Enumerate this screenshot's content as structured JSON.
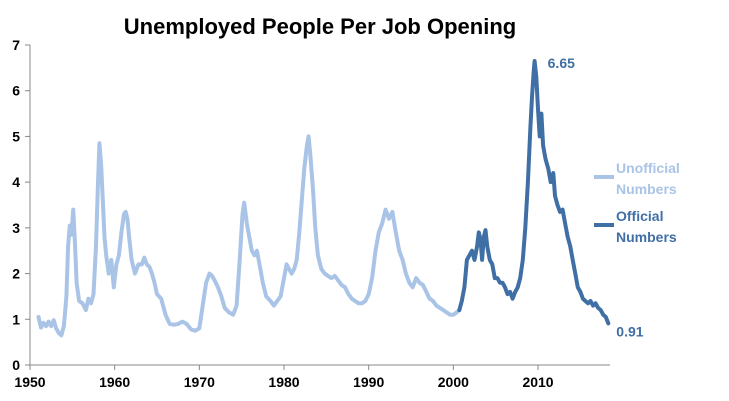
{
  "chart_data": {
    "type": "line",
    "title": "Unemployed People Per Job Opening",
    "xlim": [
      1950,
      2018.5
    ],
    "ylim": [
      0,
      7
    ],
    "x_ticks": [
      "1950",
      "1960",
      "1970",
      "1980",
      "1990",
      "2000",
      "2010"
    ],
    "y_ticks": [
      "0",
      "1",
      "2",
      "3",
      "4",
      "5",
      "6",
      "7"
    ],
    "grid": false,
    "legend_position": "right",
    "series": [
      {
        "name": "Unofficial Numbers",
        "color": "#A9C4E6",
        "points": [
          [
            1951.0,
            1.05
          ],
          [
            1951.3,
            0.82
          ],
          [
            1951.6,
            0.92
          ],
          [
            1951.9,
            0.85
          ],
          [
            1952.2,
            0.95
          ],
          [
            1952.5,
            0.85
          ],
          [
            1952.8,
            0.98
          ],
          [
            1953.1,
            0.8
          ],
          [
            1953.4,
            0.7
          ],
          [
            1953.7,
            0.65
          ],
          [
            1954.0,
            0.85
          ],
          [
            1954.3,
            1.5
          ],
          [
            1954.5,
            2.6
          ],
          [
            1954.7,
            3.05
          ],
          [
            1954.9,
            2.85
          ],
          [
            1955.1,
            3.4
          ],
          [
            1955.3,
            2.7
          ],
          [
            1955.5,
            1.8
          ],
          [
            1955.8,
            1.4
          ],
          [
            1956.2,
            1.35
          ],
          [
            1956.6,
            1.2
          ],
          [
            1956.9,
            1.45
          ],
          [
            1957.2,
            1.35
          ],
          [
            1957.5,
            1.55
          ],
          [
            1957.8,
            2.6
          ],
          [
            1958.0,
            3.8
          ],
          [
            1958.2,
            4.85
          ],
          [
            1958.4,
            4.4
          ],
          [
            1958.6,
            3.6
          ],
          [
            1958.8,
            2.8
          ],
          [
            1959.0,
            2.4
          ],
          [
            1959.3,
            2.0
          ],
          [
            1959.6,
            2.3
          ],
          [
            1959.9,
            1.7
          ],
          [
            1960.2,
            2.2
          ],
          [
            1960.5,
            2.4
          ],
          [
            1960.8,
            2.9
          ],
          [
            1961.1,
            3.3
          ],
          [
            1961.3,
            3.35
          ],
          [
            1961.5,
            3.2
          ],
          [
            1961.7,
            2.8
          ],
          [
            1962.0,
            2.3
          ],
          [
            1962.4,
            2.0
          ],
          [
            1962.8,
            2.2
          ],
          [
            1963.2,
            2.2
          ],
          [
            1963.5,
            2.35
          ],
          [
            1963.8,
            2.2
          ],
          [
            1964.1,
            2.15
          ],
          [
            1964.4,
            2.0
          ],
          [
            1964.7,
            1.8
          ],
          [
            1965.0,
            1.55
          ],
          [
            1965.5,
            1.45
          ],
          [
            1966.0,
            1.1
          ],
          [
            1966.5,
            0.9
          ],
          [
            1967.0,
            0.88
          ],
          [
            1967.5,
            0.9
          ],
          [
            1968.0,
            0.95
          ],
          [
            1968.5,
            0.9
          ],
          [
            1969.0,
            0.78
          ],
          [
            1969.5,
            0.75
          ],
          [
            1970.0,
            0.8
          ],
          [
            1970.4,
            1.3
          ],
          [
            1970.8,
            1.8
          ],
          [
            1971.2,
            2.0
          ],
          [
            1971.5,
            1.95
          ],
          [
            1971.8,
            1.85
          ],
          [
            1972.2,
            1.7
          ],
          [
            1972.6,
            1.5
          ],
          [
            1973.0,
            1.25
          ],
          [
            1973.5,
            1.15
          ],
          [
            1974.0,
            1.1
          ],
          [
            1974.4,
            1.3
          ],
          [
            1974.8,
            2.4
          ],
          [
            1975.1,
            3.3
          ],
          [
            1975.3,
            3.55
          ],
          [
            1975.6,
            3.1
          ],
          [
            1975.9,
            2.8
          ],
          [
            1976.2,
            2.5
          ],
          [
            1976.5,
            2.4
          ],
          [
            1976.8,
            2.5
          ],
          [
            1977.1,
            2.2
          ],
          [
            1977.5,
            1.8
          ],
          [
            1977.9,
            1.5
          ],
          [
            1978.4,
            1.4
          ],
          [
            1978.8,
            1.3
          ],
          [
            1979.2,
            1.4
          ],
          [
            1979.6,
            1.5
          ],
          [
            1980.0,
            1.9
          ],
          [
            1980.3,
            2.2
          ],
          [
            1980.6,
            2.1
          ],
          [
            1980.9,
            2.0
          ],
          [
            1981.2,
            2.1
          ],
          [
            1981.5,
            2.3
          ],
          [
            1981.8,
            2.9
          ],
          [
            1982.1,
            3.6
          ],
          [
            1982.4,
            4.3
          ],
          [
            1982.7,
            4.8
          ],
          [
            1982.9,
            5.0
          ],
          [
            1983.1,
            4.6
          ],
          [
            1983.4,
            3.9
          ],
          [
            1983.7,
            3.0
          ],
          [
            1984.0,
            2.4
          ],
          [
            1984.4,
            2.1
          ],
          [
            1984.8,
            2.0
          ],
          [
            1985.2,
            1.95
          ],
          [
            1985.6,
            1.9
          ],
          [
            1986.0,
            1.95
          ],
          [
            1986.4,
            1.85
          ],
          [
            1986.8,
            1.75
          ],
          [
            1987.2,
            1.7
          ],
          [
            1987.6,
            1.55
          ],
          [
            1988.0,
            1.45
          ],
          [
            1988.4,
            1.4
          ],
          [
            1988.8,
            1.35
          ],
          [
            1989.2,
            1.35
          ],
          [
            1989.6,
            1.4
          ],
          [
            1990.0,
            1.55
          ],
          [
            1990.4,
            1.9
          ],
          [
            1990.8,
            2.5
          ],
          [
            1991.2,
            2.9
          ],
          [
            1991.6,
            3.1
          ],
          [
            1992.0,
            3.4
          ],
          [
            1992.4,
            3.2
          ],
          [
            1992.8,
            3.35
          ],
          [
            1993.2,
            2.9
          ],
          [
            1993.6,
            2.5
          ],
          [
            1994.0,
            2.3
          ],
          [
            1994.4,
            2.0
          ],
          [
            1994.8,
            1.8
          ],
          [
            1995.2,
            1.7
          ],
          [
            1995.6,
            1.9
          ],
          [
            1996.0,
            1.8
          ],
          [
            1996.4,
            1.75
          ],
          [
            1996.8,
            1.6
          ],
          [
            1997.2,
            1.45
          ],
          [
            1997.6,
            1.4
          ],
          [
            1998.0,
            1.3
          ],
          [
            1998.4,
            1.25
          ],
          [
            1998.8,
            1.2
          ],
          [
            1999.2,
            1.15
          ],
          [
            1999.6,
            1.1
          ],
          [
            2000.0,
            1.1
          ],
          [
            2000.4,
            1.15
          ],
          [
            2000.7,
            1.2
          ]
        ]
      },
      {
        "name": "Official Numbers",
        "color": "#3F6FA5",
        "points": [
          [
            2000.7,
            1.2
          ],
          [
            2001.0,
            1.4
          ],
          [
            2001.3,
            1.7
          ],
          [
            2001.6,
            2.3
          ],
          [
            2001.9,
            2.4
          ],
          [
            2002.2,
            2.5
          ],
          [
            2002.5,
            2.3
          ],
          [
            2002.8,
            2.6
          ],
          [
            2003.0,
            2.9
          ],
          [
            2003.2,
            2.75
          ],
          [
            2003.4,
            2.3
          ],
          [
            2003.6,
            2.8
          ],
          [
            2003.8,
            2.95
          ],
          [
            2004.0,
            2.6
          ],
          [
            2004.3,
            2.3
          ],
          [
            2004.6,
            2.2
          ],
          [
            2004.9,
            1.9
          ],
          [
            2005.2,
            1.9
          ],
          [
            2005.5,
            1.8
          ],
          [
            2005.8,
            1.8
          ],
          [
            2006.1,
            1.7
          ],
          [
            2006.4,
            1.55
          ],
          [
            2006.7,
            1.6
          ],
          [
            2007.0,
            1.45
          ],
          [
            2007.3,
            1.6
          ],
          [
            2007.6,
            1.7
          ],
          [
            2007.9,
            1.9
          ],
          [
            2008.2,
            2.3
          ],
          [
            2008.5,
            3.0
          ],
          [
            2008.8,
            4.0
          ],
          [
            2009.1,
            5.2
          ],
          [
            2009.3,
            5.9
          ],
          [
            2009.5,
            6.45
          ],
          [
            2009.6,
            6.65
          ],
          [
            2009.8,
            6.3
          ],
          [
            2010.0,
            5.6
          ],
          [
            2010.2,
            5.0
          ],
          [
            2010.4,
            5.5
          ],
          [
            2010.6,
            4.8
          ],
          [
            2010.9,
            4.5
          ],
          [
            2011.2,
            4.3
          ],
          [
            2011.5,
            4.0
          ],
          [
            2011.8,
            4.2
          ],
          [
            2012.0,
            3.7
          ],
          [
            2012.3,
            3.5
          ],
          [
            2012.6,
            3.35
          ],
          [
            2012.9,
            3.4
          ],
          [
            2013.2,
            3.1
          ],
          [
            2013.5,
            2.8
          ],
          [
            2013.8,
            2.6
          ],
          [
            2014.1,
            2.3
          ],
          [
            2014.4,
            2.0
          ],
          [
            2014.7,
            1.7
          ],
          [
            2015.0,
            1.6
          ],
          [
            2015.3,
            1.45
          ],
          [
            2015.6,
            1.4
          ],
          [
            2015.9,
            1.35
          ],
          [
            2016.2,
            1.4
          ],
          [
            2016.5,
            1.3
          ],
          [
            2016.8,
            1.35
          ],
          [
            2017.1,
            1.25
          ],
          [
            2017.4,
            1.2
          ],
          [
            2017.7,
            1.1
          ],
          [
            2018.0,
            1.05
          ],
          [
            2018.3,
            0.91
          ]
        ]
      }
    ],
    "annotations": [
      {
        "text": "6.65",
        "x": 2009.6,
        "y": 6.65,
        "series": 1
      },
      {
        "text": "0.91",
        "x": 2018.3,
        "y": 0.91,
        "series": 1
      }
    ]
  }
}
